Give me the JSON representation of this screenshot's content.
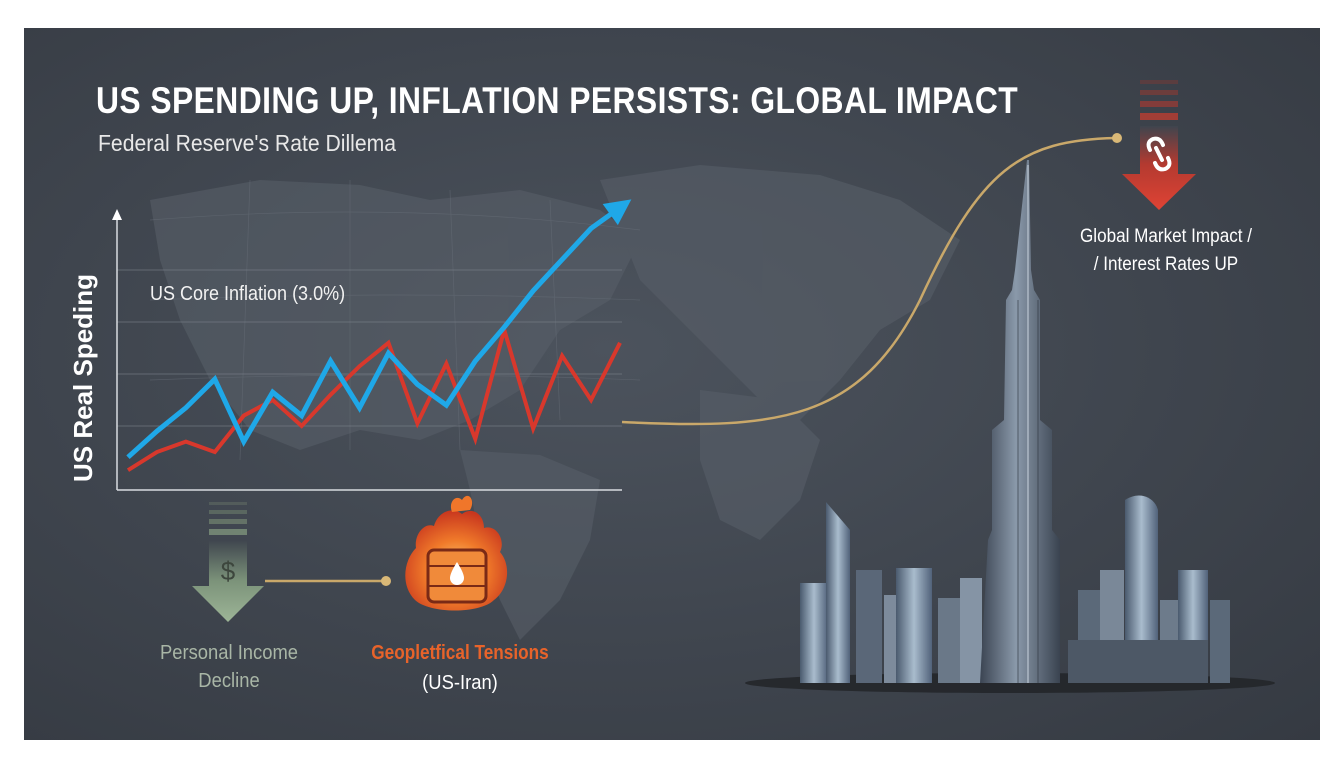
{
  "title": "US SPENDING UP, INFLATION PERSISTS: GLOBAL IMPACT",
  "subtitle": "Federal Reserve's Rate Dillema",
  "annotations": {
    "global_impact_line1": "Global Market Impact /",
    "global_impact_line2": "/ Interest Rates UP",
    "income_line1": "Personal Income",
    "income_line2": "Decline",
    "geo_line1": "Geopletfical Tensions",
    "geo_line2": "(US-Iran)",
    "dollar_symbol": "$"
  },
  "icons": {
    "income": "dollar-down-arrow-icon",
    "geo": "flaming-oil-barrel-icon",
    "market": "chain-link-down-arrow-icon"
  },
  "colors": {
    "background": "#3f454e",
    "spending_line": "#1fa8e8",
    "inflation_line": "#d8382c",
    "connector": "#c9a86a",
    "income_arrow": "#8fa98a",
    "geo_accent": "#e8632a",
    "market_arrow": "#d8382c"
  },
  "chart_data": {
    "type": "line",
    "title": "US SPENDING UP, INFLATION PERSISTS: GLOBAL IMPACT",
    "ylabel": "US Real Speding",
    "xlabel": "",
    "ylim": [
      0,
      10
    ],
    "x": [
      0,
      1,
      2,
      3,
      4,
      5,
      6,
      7,
      8,
      9,
      10,
      11,
      12,
      13,
      14,
      15,
      16,
      17
    ],
    "grid": true,
    "series": [
      {
        "name": "",
        "color": "#1fa8e8",
        "values": [
          0.8,
          1.8,
          2.7,
          3.8,
          1.4,
          3.3,
          2.4,
          4.5,
          2.7,
          4.8,
          3.6,
          2.8,
          4.5,
          5.8,
          7.2,
          8.4,
          9.6,
          10.4
        ]
      },
      {
        "name": "US Core Inflation (3.0%)",
        "color": "#d8382c",
        "values": [
          0.3,
          1.0,
          1.4,
          1.0,
          2.4,
          3.0,
          2.0,
          3.2,
          4.3,
          5.2,
          2.1,
          4.4,
          1.5,
          5.7,
          1.9,
          4.7,
          3.0,
          5.2
        ]
      }
    ]
  }
}
